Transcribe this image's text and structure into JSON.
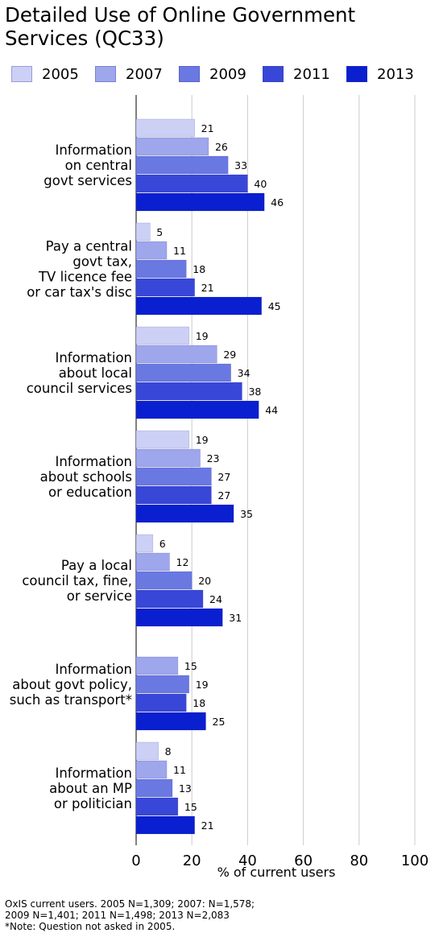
{
  "chart_data": {
    "type": "bar",
    "orientation": "horizontal",
    "title": "Detailed Use of Online Government\nServices     (QC33)",
    "xlabel": "% of current users",
    "xlim": [
      0,
      100
    ],
    "xticks": [
      0,
      20,
      40,
      60,
      80,
      100
    ],
    "grid": true,
    "legend_position": "top",
    "categories": [
      "Information\non central\ngovt services",
      "Pay a central\ngovt tax,\nTV licence fee\nor car tax's disc",
      "Information\nabout local\ncouncil services",
      "Information\nabout schools\nor education",
      "Pay a local\ncouncil tax, fine,\nor service",
      "Information\nabout govt policy,\nsuch as transport*",
      "Information\nabout an MP\nor politician"
    ],
    "series": [
      {
        "name": "2005",
        "color": "#ccd0f5",
        "values": [
          21,
          5,
          19,
          19,
          6,
          null,
          8
        ]
      },
      {
        "name": "2007",
        "color": "#9ea6ec",
        "values": [
          26,
          11,
          29,
          23,
          12,
          15,
          11
        ]
      },
      {
        "name": "2009",
        "color": "#6a78e2",
        "values": [
          33,
          18,
          34,
          27,
          20,
          19,
          13
        ]
      },
      {
        "name": "2011",
        "color": "#3847d8",
        "values": [
          40,
          21,
          38,
          27,
          24,
          18,
          15
        ]
      },
      {
        "name": "2013",
        "color": "#0a1fcf",
        "values": [
          46,
          45,
          44,
          35,
          31,
          25,
          21
        ]
      }
    ]
  },
  "footnote": [
    "OxIS current users. 2005 N=1,309; 2007: N=1,578;",
    "2009 N=1,401; 2011 N=1,498;  2013 N=2,083",
    "*Note: Question not asked in 2005."
  ]
}
